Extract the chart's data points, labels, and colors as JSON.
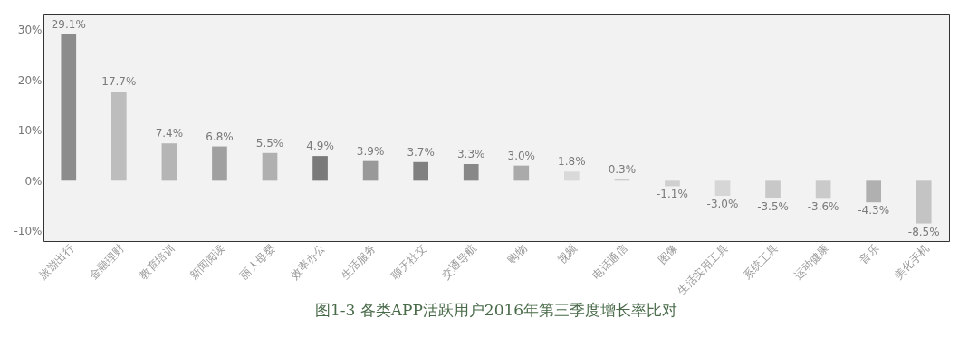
{
  "chart_data": {
    "type": "bar",
    "title": "图1-3 各类APP活跃用户2016年第三季度增长率比对",
    "categories": [
      "旅游出行",
      "金融理财",
      "教育培训",
      "新闻阅读",
      "丽人母婴",
      "效率办公",
      "生活服务",
      "聊天社交",
      "交通导航",
      "购物",
      "视频",
      "电话通信",
      "图像",
      "生活实用工具",
      "系统工具",
      "运动健康",
      "音乐",
      "美化手机"
    ],
    "values": [
      29.1,
      17.7,
      7.4,
      6.8,
      5.5,
      4.9,
      3.9,
      3.7,
      3.3,
      3.0,
      1.8,
      0.3,
      -1.1,
      -3.0,
      -3.5,
      -3.6,
      -4.3,
      -8.5
    ],
    "value_labels": [
      "29.1%",
      "17.7%",
      "7.4%",
      "6.8%",
      "5.5%",
      "4.9%",
      "3.9%",
      "3.7%",
      "3.3%",
      "3.0%",
      "1.8%",
      "0.3%",
      "-1.1%",
      "-3.0%",
      "-3.5%",
      "-3.6%",
      "-4.3%",
      "-8.5%"
    ],
    "colors": [
      "#8c8c8c",
      "#bdbdbd",
      "#b5b5b5",
      "#a0a0a0",
      "#b0b0b0",
      "#7a7a7a",
      "#999999",
      "#808080",
      "#888888",
      "#aaaaaa",
      "#d9d9d9",
      "#cccccc",
      "#cfcfcf",
      "#d6d6d6",
      "#c8c8c8",
      "#cacaca",
      "#b0b0b0",
      "#c4c4c4"
    ],
    "ylim": [
      -12,
      33
    ],
    "yticks": [
      {
        "value": -10,
        "label": "-10%"
      },
      {
        "value": 0,
        "label": "0%"
      },
      {
        "value": 10,
        "label": "10%"
      },
      {
        "value": 20,
        "label": "20%"
      },
      {
        "value": 30,
        "label": "30%"
      }
    ],
    "grid": false
  }
}
